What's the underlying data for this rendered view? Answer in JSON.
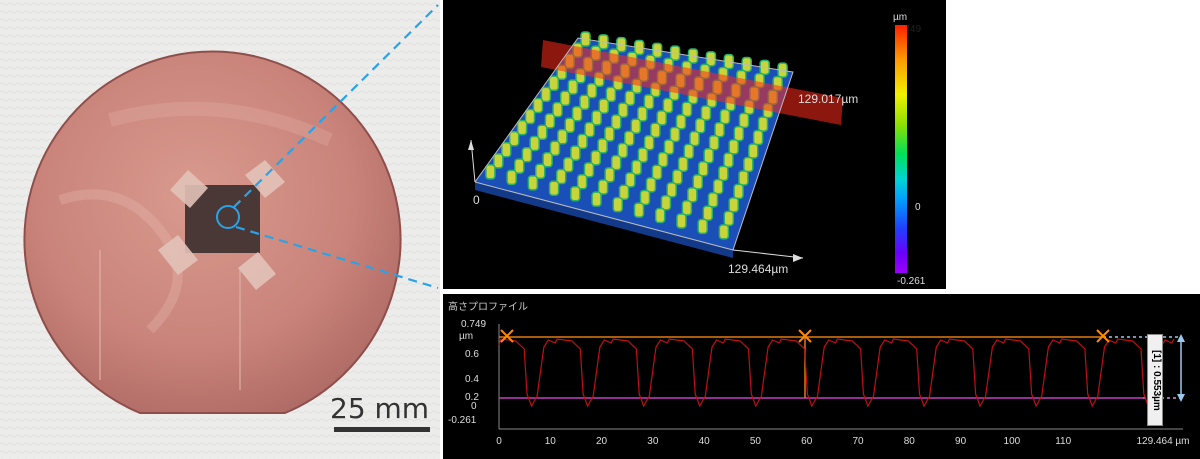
{
  "photo": {
    "scale_label": "25 mm"
  },
  "view3d": {
    "x_extent": "129.464µm",
    "y_extent": "129.017µm",
    "origin": "0",
    "colorbar": {
      "unit": "µm",
      "max": "0.749",
      "mid": "0",
      "min": "-0.261"
    }
  },
  "profile": {
    "title": "高さプロファイル",
    "y_max": "0.749",
    "y_unit": "µm",
    "y_ticks": [
      "0.6",
      "0.4",
      "0.2",
      "0",
      "-0.261"
    ],
    "x_ticks": [
      "0",
      "10",
      "20",
      "30",
      "40",
      "50",
      "60",
      "70",
      "80",
      "90",
      "100",
      "110",
      "129.464 µm"
    ],
    "marker_label": "[1] : 0.553µm",
    "colors": {
      "trace": "#c01010",
      "top_line": "#e07a10",
      "base_line": "#c040c0",
      "marker": "#ff8a00"
    }
  }
}
